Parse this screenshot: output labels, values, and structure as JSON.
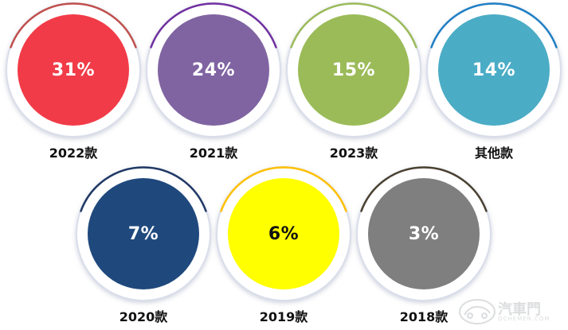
{
  "chart_data": {
    "type": "bubble",
    "title": "",
    "unit": "%",
    "categories": [
      "2022款",
      "2021款",
      "2023款",
      "其他款",
      "2020款",
      "2019款",
      "2018款"
    ],
    "values": [
      31,
      24,
      15,
      14,
      7,
      6,
      3
    ],
    "value_labels": [
      "31%",
      "24%",
      "15%",
      "14%",
      "7%",
      "6%",
      "3%"
    ],
    "colors": [
      "#f23b48",
      "#8064a2",
      "#9bbb59",
      "#4bacc6",
      "#1f497d",
      "#ffff00",
      "#7f7f7f"
    ],
    "accent_colors": [
      "#c0504d",
      "#7030a0",
      "#9bbb59",
      "#1f7fc4",
      "#1f3864",
      "#ffc000",
      "#4a4030"
    ],
    "value_text_colors": [
      "#ffffff",
      "#ffffff",
      "#ffffff",
      "#ffffff",
      "#ffffff",
      "#111111",
      "#ffffff"
    ],
    "layout": "two-rows"
  },
  "watermark": {
    "text": "汽車門",
    "sub": "QCHEMEN.COM",
    "icon": "car-outline-icon"
  }
}
